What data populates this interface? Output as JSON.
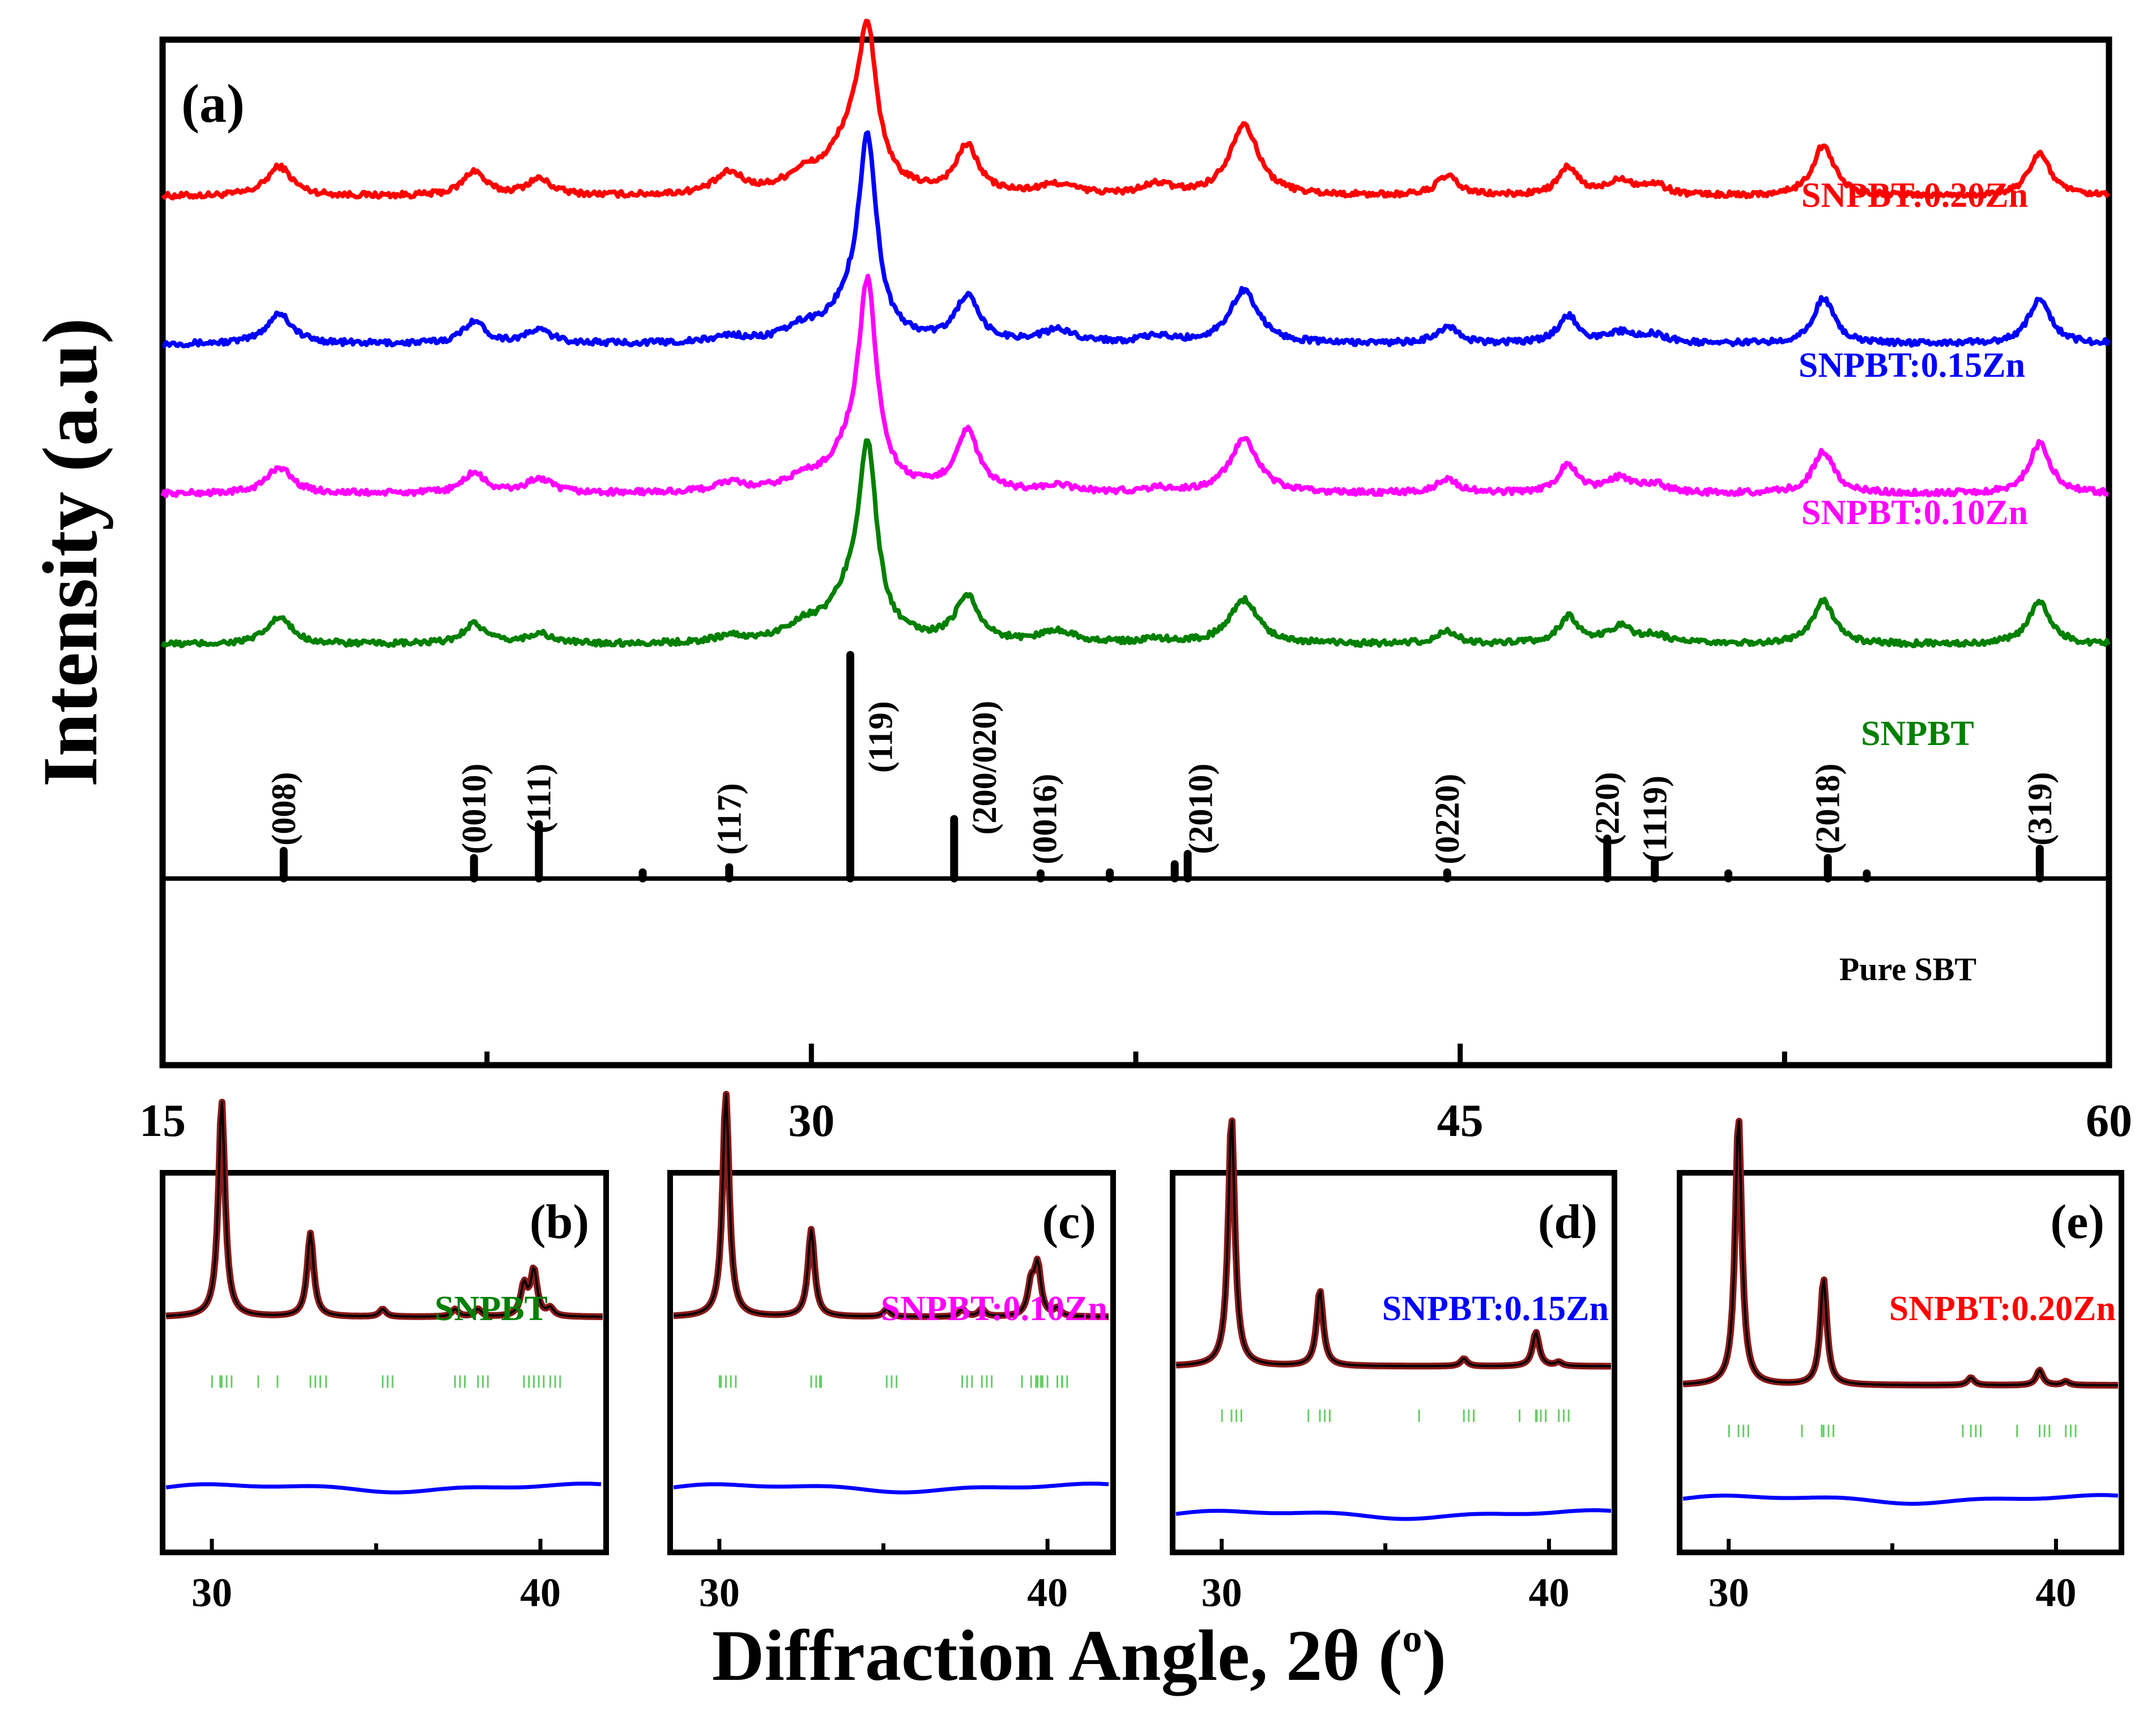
{
  "colors": {
    "red": "#ff0000",
    "blue": "#0000ff",
    "magenta": "#ff00ff",
    "green": "#008000",
    "black": "#000000",
    "fit": "#8b1a1a",
    "bragg": "#66cc66"
  },
  "chart_data": [
    {
      "id": "a",
      "type": "line",
      "panel_label": "(a)",
      "xlabel": "Diffraction Angle, 2θ (",
      "xlabel_sup": "o",
      "xlabel_close": ")",
      "ylabel": "Intensity (a.u)",
      "xlim": [
        15,
        60
      ],
      "ylim": [
        0,
        100
      ],
      "x_ticks": [
        15,
        30,
        45,
        60
      ],
      "x_tick_labels": [
        "15",
        "30",
        "45",
        "60"
      ],
      "grid": false,
      "peaks": [
        {
          "x": 17.7,
          "w": 0.35
        },
        {
          "x": 22.2,
          "w": 0.3
        },
        {
          "x": 23.7,
          "w": 0.35
        },
        {
          "x": 28.1,
          "w": 0.4
        },
        {
          "x": 29.8,
          "w": 0.5
        },
        {
          "x": 30.9,
          "w": 0.6
        },
        {
          "x": 31.3,
          "w": 0.25
        },
        {
          "x": 33.6,
          "w": 0.32
        },
        {
          "x": 35.7,
          "w": 0.5
        },
        {
          "x": 38.0,
          "w": 0.4
        },
        {
          "x": 40.0,
          "w": 0.4
        },
        {
          "x": 44.7,
          "w": 0.3
        },
        {
          "x": 47.5,
          "w": 0.28
        },
        {
          "x": 48.7,
          "w": 0.35
        },
        {
          "x": 49.5,
          "w": 0.35
        },
        {
          "x": 53.4,
          "w": 0.3
        },
        {
          "x": 58.4,
          "w": 0.3
        }
      ],
      "series": [
        {
          "name": "SNPBT:0.20Zn",
          "color": "#ff0000",
          "baseline": 84.7,
          "amplitudes": [
            2.9,
            2.4,
            1.6,
            2.0,
            1.5,
            5.0,
            13.5,
            4.6,
            1.0,
            1.0,
            7.0,
            1.9,
            2.7,
            1.5,
            1.0,
            5.0,
            4.2
          ]
        },
        {
          "name": "SNPBT:0.15Zn",
          "color": "#0000ff",
          "baseline": 70.3,
          "amplitudes": [
            3.0,
            2.2,
            1.3,
            0.6,
            1.2,
            3.0,
            18.3,
            4.4,
            1.2,
            0.6,
            5.2,
            1.6,
            2.7,
            1.0,
            0.8,
            4.4,
            4.5
          ]
        },
        {
          "name": "SNPBT:0.10Zn",
          "color": "#ff00ff",
          "baseline": 55.7,
          "amplitudes": [
            2.6,
            2.0,
            1.4,
            0.9,
            1.0,
            3.3,
            18.5,
            5.9,
            0.6,
            0.4,
            5.2,
            1.4,
            2.8,
            1.4,
            0.8,
            4.1,
            4.9
          ]
        },
        {
          "name": "SNPBT",
          "color": "#008000",
          "baseline": 41.0,
          "amplitudes": [
            2.6,
            2.0,
            1.0,
            0.6,
            1.4,
            4.0,
            17.0,
            4.5,
            1.2,
            0.4,
            4.3,
            1.2,
            2.6,
            1.6,
            0.8,
            4.2,
            4.2
          ]
        }
      ],
      "reference": {
        "name": "Pure SBT",
        "color": "#000000",
        "baseline": 18.2,
        "lines": [
          {
            "x": 17.8,
            "h": 2.7
          },
          {
            "x": 22.2,
            "h": 2.0
          },
          {
            "x": 23.7,
            "h": 5.3
          },
          {
            "x": 26.1,
            "h": 0.6
          },
          {
            "x": 28.1,
            "h": 1.1
          },
          {
            "x": 30.9,
            "h": 21.8
          },
          {
            "x": 33.3,
            "h": 5.8
          },
          {
            "x": 35.3,
            "h": 0.5
          },
          {
            "x": 36.9,
            "h": 0.6
          },
          {
            "x": 38.4,
            "h": 1.4
          },
          {
            "x": 38.7,
            "h": 2.4
          },
          {
            "x": 44.7,
            "h": 0.6
          },
          {
            "x": 48.4,
            "h": 3.9
          },
          {
            "x": 49.5,
            "h": 1.6
          },
          {
            "x": 51.2,
            "h": 0.5
          },
          {
            "x": 53.5,
            "h": 2.0
          },
          {
            "x": 54.4,
            "h": 0.5
          },
          {
            "x": 58.4,
            "h": 2.9
          }
        ]
      },
      "hkl_labels": [
        "(008)",
        "(0010)",
        "(111)",
        "(117)",
        "(119)",
        "(200/020)",
        "(0016)",
        "(2010)",
        "(0220)",
        "(220)",
        "(1119)",
        "(2018)",
        "(319)"
      ],
      "hkl_x": [
        17.8,
        22.2,
        23.7,
        28.1,
        31.6,
        34.0,
        35.4,
        39.0,
        44.7,
        48.4,
        49.5,
        53.5,
        58.4
      ],
      "hkl_y": [
        25,
        25,
        26,
        24,
        32,
        29,
        24,
        25,
        24,
        25,
        24,
        25,
        25
      ]
    },
    {
      "id": "b",
      "type": "line",
      "panel_label": "(b)",
      "sample": "SNPBT",
      "sample_color": "#008000",
      "xlim": [
        28.5,
        42
      ],
      "x_ticks": [
        30,
        40
      ],
      "x_tick_labels": [
        "30",
        "40"
      ],
      "baseline": 62,
      "peaks": [
        {
          "x": 30.3,
          "h": 57
        },
        {
          "x": 33.0,
          "h": 22
        },
        {
          "x": 35.2,
          "h": 2
        },
        {
          "x": 37.4,
          "h": 2
        },
        {
          "x": 38.1,
          "h": 2
        },
        {
          "x": 39.5,
          "h": 8
        },
        {
          "x": 39.8,
          "h": 12
        },
        {
          "x": 40.3,
          "h": 2
        }
      ],
      "difference_y": 17,
      "bragg_y": 45
    },
    {
      "id": "c",
      "type": "line",
      "panel_label": "(c)",
      "sample": "SNPBT:0.10Zn",
      "sample_color": "#ff00ff",
      "xlim": [
        28.5,
        42
      ],
      "x_ticks": [
        30,
        40
      ],
      "x_tick_labels": [
        "30",
        "40"
      ],
      "baseline": 62,
      "peaks": [
        {
          "x": 30.2,
          "h": 59
        },
        {
          "x": 32.8,
          "h": 23
        },
        {
          "x": 35.1,
          "h": 2
        },
        {
          "x": 37.4,
          "h": 2
        },
        {
          "x": 38.0,
          "h": 2
        },
        {
          "x": 39.5,
          "h": 8
        },
        {
          "x": 39.7,
          "h": 13
        },
        {
          "x": 40.3,
          "h": 2
        }
      ],
      "difference_y": 17,
      "bragg_y": 45
    },
    {
      "id": "d",
      "type": "line",
      "panel_label": "(d)",
      "sample": "SNPBT:0.15Zn",
      "sample_color": "#0000ff",
      "xlim": [
        28.5,
        42
      ],
      "x_ticks": [
        30,
        40
      ],
      "x_tick_labels": [
        "30",
        "40"
      ],
      "baseline": 49,
      "peaks": [
        {
          "x": 30.3,
          "h": 66
        },
        {
          "x": 33.0,
          "h": 20
        },
        {
          "x": 37.4,
          "h": 2
        },
        {
          "x": 39.6,
          "h": 9
        },
        {
          "x": 40.3,
          "h": 1
        }
      ],
      "difference_y": 10,
      "bragg_y": 36
    },
    {
      "id": "e",
      "type": "line",
      "panel_label": "(e)",
      "sample": "SNPBT:0.20Zn",
      "sample_color": "#ff0000",
      "xlim": [
        28.5,
        42
      ],
      "x_ticks": [
        30,
        40
      ],
      "x_tick_labels": [
        "30",
        "40"
      ],
      "baseline": 44,
      "peaks": [
        {
          "x": 30.3,
          "h": 71
        },
        {
          "x": 32.9,
          "h": 28
        },
        {
          "x": 37.4,
          "h": 2
        },
        {
          "x": 39.5,
          "h": 4
        },
        {
          "x": 40.3,
          "h": 1
        }
      ],
      "difference_y": 14,
      "bragg_y": 32
    }
  ]
}
